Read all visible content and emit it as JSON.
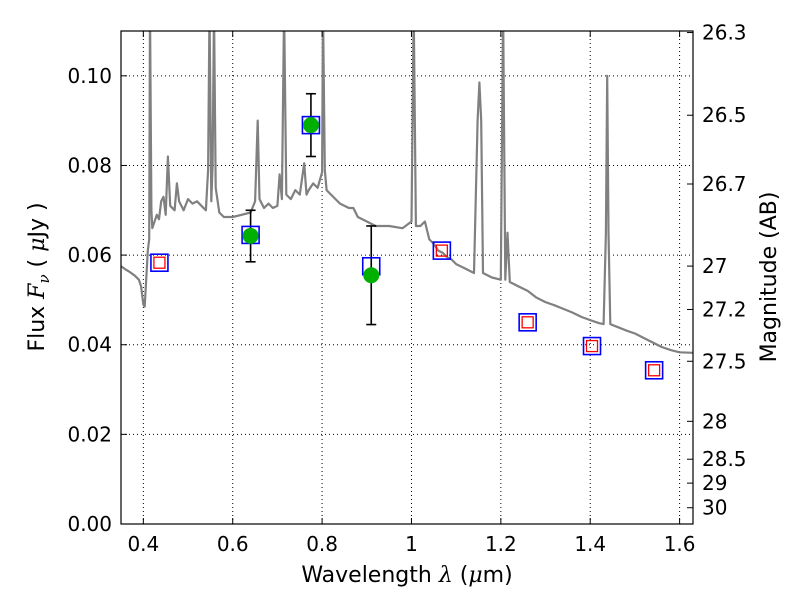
{
  "chart_data": {
    "type": "scatter",
    "title": "",
    "xlabel": "Wavelength λ (μm)",
    "xlabel_parts": [
      "Wavelength ",
      "λ",
      " (",
      "μ",
      "m)"
    ],
    "ylabel": "Flux Fν ( μJy )",
    "ylabel_parts": [
      "Flux ",
      "F",
      "ν",
      " ( ",
      "μ",
      "Jy )"
    ],
    "y2label": "Magnitude (AB)",
    "xlim": [
      0.35,
      1.63
    ],
    "ylim": [
      0.0,
      0.11
    ],
    "xticks": [
      0.4,
      0.6,
      0.8,
      1.0,
      1.2,
      1.4,
      1.6
    ],
    "xtick_labels": [
      "0.4",
      "0.6",
      "0.8",
      "1",
      "1.2",
      "1.4",
      "1.6"
    ],
    "yticks": [
      0.0,
      0.02,
      0.04,
      0.06,
      0.08,
      0.1
    ],
    "ytick_labels": [
      "0.00",
      "0.02",
      "0.04",
      "0.06",
      "0.08",
      "0.10"
    ],
    "y2ticks": [
      {
        "mag": 26.3,
        "label": "26.3"
      },
      {
        "mag": 26.5,
        "label": "26.5"
      },
      {
        "mag": 26.7,
        "label": "26.7"
      },
      {
        "mag": 27.0,
        "label": "27"
      },
      {
        "mag": 27.2,
        "label": "27.2"
      },
      {
        "mag": 27.5,
        "label": "27.5"
      },
      {
        "mag": 28.0,
        "label": "28"
      },
      {
        "mag": 28.5,
        "label": "28.5"
      },
      {
        "mag": 29.0,
        "label": "29"
      },
      {
        "mag": 30.0,
        "label": "30"
      }
    ],
    "grid": true,
    "colors": {
      "spectrum": "#808080",
      "model_marker": "#0000ff",
      "observed_fill": "#00b000",
      "upper_marker": "#ff0000",
      "errorbar": "#000000"
    },
    "series": [
      {
        "kind": "line",
        "points": [
          [
            0.35,
            0.0575
          ],
          [
            0.36,
            0.0568
          ],
          [
            0.37,
            0.0562
          ],
          [
            0.38,
            0.0555
          ],
          [
            0.39,
            0.0545
          ],
          [
            0.395,
            0.053
          ],
          [
            0.4,
            0.049
          ],
          [
            0.403,
            0.0485
          ],
          [
            0.41,
            0.061
          ],
          [
            0.413,
            0.0635
          ],
          [
            0.415,
            0.115
          ],
          [
            0.418,
            0.07
          ],
          [
            0.42,
            0.066
          ],
          [
            0.43,
            0.069
          ],
          [
            0.435,
            0.068
          ],
          [
            0.44,
            0.072
          ],
          [
            0.445,
            0.073
          ],
          [
            0.45,
            0.069
          ],
          [
            0.455,
            0.082
          ],
          [
            0.46,
            0.071
          ],
          [
            0.47,
            0.07
          ],
          [
            0.475,
            0.076
          ],
          [
            0.48,
            0.072
          ],
          [
            0.49,
            0.07
          ],
          [
            0.5,
            0.0725
          ],
          [
            0.51,
            0.0715
          ],
          [
            0.52,
            0.072
          ],
          [
            0.53,
            0.071
          ],
          [
            0.54,
            0.07
          ],
          [
            0.545,
            0.079
          ],
          [
            0.548,
            0.115
          ],
          [
            0.552,
            0.072
          ],
          [
            0.555,
            0.08
          ],
          [
            0.558,
            0.115
          ],
          [
            0.562,
            0.075
          ],
          [
            0.57,
            0.0695
          ],
          [
            0.58,
            0.0685
          ],
          [
            0.6,
            0.0685
          ],
          [
            0.62,
            0.069
          ],
          [
            0.64,
            0.0695
          ],
          [
            0.65,
            0.072
          ],
          [
            0.656,
            0.09
          ],
          [
            0.66,
            0.0725
          ],
          [
            0.67,
            0.0705
          ],
          [
            0.68,
            0.0715
          ],
          [
            0.69,
            0.0705
          ],
          [
            0.7,
            0.071
          ],
          [
            0.705,
            0.078
          ],
          [
            0.71,
            0.0725
          ],
          [
            0.715,
            0.115
          ],
          [
            0.72,
            0.0735
          ],
          [
            0.73,
            0.0725
          ],
          [
            0.74,
            0.0745
          ],
          [
            0.75,
            0.0735
          ],
          [
            0.76,
            0.0805
          ],
          [
            0.765,
            0.0735
          ],
          [
            0.77,
            0.0745
          ],
          [
            0.78,
            0.076
          ],
          [
            0.79,
            0.075
          ],
          [
            0.8,
            0.0785
          ],
          [
            0.802,
            0.115
          ],
          [
            0.806,
            0.079
          ],
          [
            0.81,
            0.0745
          ],
          [
            0.82,
            0.0735
          ],
          [
            0.84,
            0.0715
          ],
          [
            0.86,
            0.0705
          ],
          [
            0.87,
            0.0705
          ],
          [
            0.88,
            0.0685
          ],
          [
            0.9,
            0.0675
          ],
          [
            0.92,
            0.0665
          ],
          [
            0.95,
            0.0665
          ],
          [
            0.98,
            0.066
          ],
          [
            1.0,
            0.0675
          ],
          [
            1.005,
            0.115
          ],
          [
            1.01,
            0.0665
          ],
          [
            1.02,
            0.0665
          ],
          [
            1.03,
            0.0675
          ],
          [
            1.04,
            0.0635
          ],
          [
            1.05,
            0.0625
          ],
          [
            1.06,
            0.061
          ],
          [
            1.07,
            0.0605
          ],
          [
            1.08,
            0.0595
          ],
          [
            1.09,
            0.059
          ],
          [
            1.1,
            0.058
          ],
          [
            1.11,
            0.0575
          ],
          [
            1.12,
            0.057
          ],
          [
            1.14,
            0.056
          ],
          [
            1.148,
            0.09
          ],
          [
            1.152,
            0.0985
          ],
          [
            1.156,
            0.09
          ],
          [
            1.16,
            0.056
          ],
          [
            1.18,
            0.055
          ],
          [
            1.2,
            0.0545
          ],
          [
            1.205,
            0.115
          ],
          [
            1.21,
            0.0545
          ],
          [
            1.215,
            0.065
          ],
          [
            1.22,
            0.054
          ],
          [
            1.24,
            0.053
          ],
          [
            1.26,
            0.052
          ],
          [
            1.28,
            0.0505
          ],
          [
            1.3,
            0.0495
          ],
          [
            1.32,
            0.0488
          ],
          [
            1.34,
            0.048
          ],
          [
            1.36,
            0.0472
          ],
          [
            1.38,
            0.0462
          ],
          [
            1.4,
            0.0455
          ],
          [
            1.42,
            0.0448
          ],
          [
            1.43,
            0.0446
          ],
          [
            1.435,
            0.065
          ],
          [
            1.438,
            0.1
          ],
          [
            1.441,
            0.065
          ],
          [
            1.445,
            0.0446
          ],
          [
            1.46,
            0.044
          ],
          [
            1.48,
            0.0432
          ],
          [
            1.5,
            0.0425
          ],
          [
            1.52,
            0.0415
          ],
          [
            1.54,
            0.0405
          ],
          [
            1.56,
            0.0395
          ],
          [
            1.58,
            0.0388
          ],
          [
            1.6,
            0.0383
          ],
          [
            1.63,
            0.0382
          ]
        ]
      },
      {
        "kind": "model",
        "points": [
          [
            0.436,
            0.0583
          ],
          [
            0.64,
            0.0645
          ],
          [
            0.775,
            0.089
          ],
          [
            0.91,
            0.0575
          ],
          [
            1.068,
            0.061
          ],
          [
            1.26,
            0.045
          ],
          [
            1.404,
            0.0397
          ],
          [
            1.543,
            0.0343
          ]
        ]
      },
      {
        "kind": "observed",
        "points": [
          {
            "x": 0.64,
            "y": 0.0643,
            "lo": 0.0585,
            "hi": 0.07
          },
          {
            "x": 0.775,
            "y": 0.089,
            "lo": 0.082,
            "hi": 0.096
          },
          {
            "x": 0.91,
            "y": 0.0555,
            "lo": 0.0445,
            "hi": 0.0665
          }
        ]
      },
      {
        "kind": "upper",
        "points": [
          [
            0.436,
            0.0583
          ],
          [
            1.068,
            0.061
          ],
          [
            1.26,
            0.045
          ],
          [
            1.404,
            0.0397
          ],
          [
            1.543,
            0.0343
          ]
        ]
      }
    ]
  }
}
